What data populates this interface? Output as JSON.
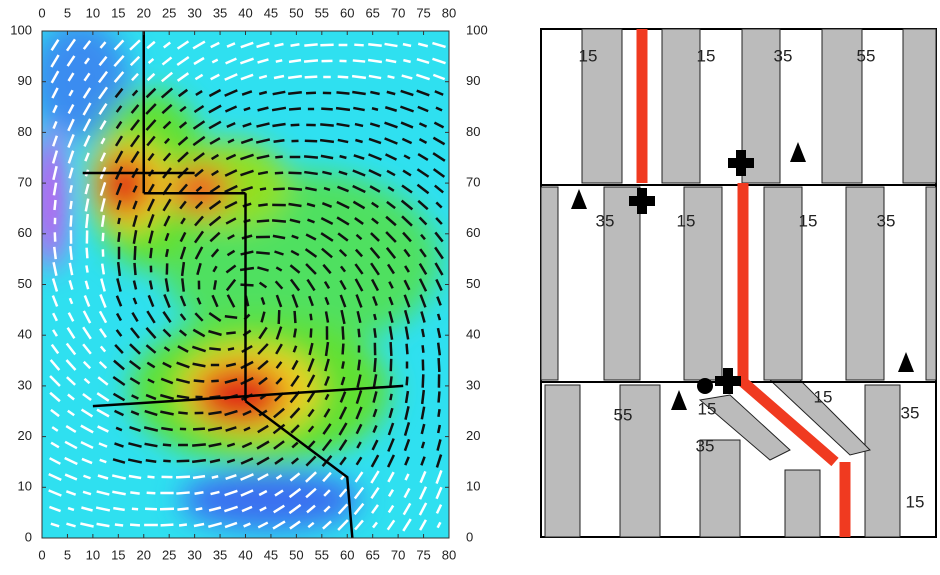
{
  "chart_data": {
    "type": "line",
    "xlim": [
      0,
      80
    ],
    "ylim": [
      0,
      100
    ],
    "xticks": [
      0,
      5,
      10,
      15,
      20,
      25,
      30,
      35,
      40,
      45,
      50,
      55,
      60,
      65,
      70,
      75,
      80
    ],
    "yticks": [
      0,
      10,
      20,
      30,
      40,
      50,
      60,
      70,
      80,
      90,
      100
    ],
    "lines": [
      {
        "x": [
          20,
          20
        ],
        "y": [
          100,
          68
        ]
      },
      {
        "x": [
          8,
          30
        ],
        "y": [
          72,
          72
        ]
      },
      {
        "x": [
          20,
          40
        ],
        "y": [
          68,
          68
        ]
      },
      {
        "x": [
          40,
          40
        ],
        "y": [
          68,
          27
        ]
      },
      {
        "x": [
          40,
          60,
          61
        ],
        "y": [
          27,
          12,
          0
        ]
      },
      {
        "x": [
          10,
          71
        ],
        "y": [
          26,
          30
        ]
      }
    ]
  },
  "right_panel": {
    "labels": [
      15,
      15,
      35,
      55,
      35,
      15,
      15,
      35,
      55,
      15,
      35,
      15,
      35,
      15
    ]
  }
}
